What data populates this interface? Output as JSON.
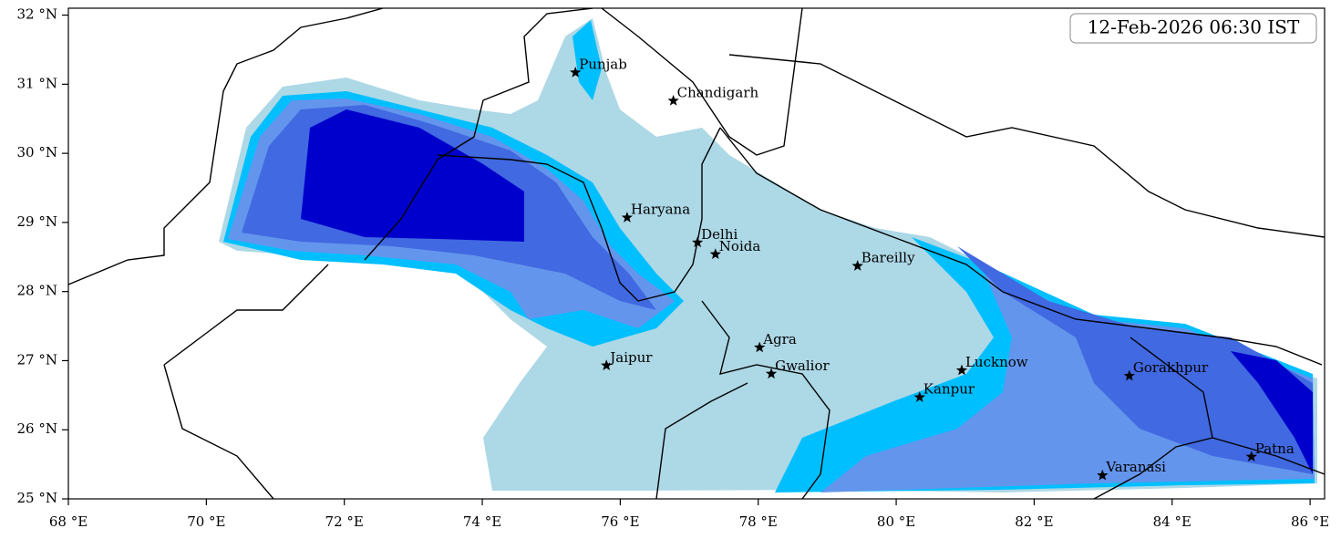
{
  "title": "12-Feb-2026 06:30 IST",
  "map": {
    "xlim": [
      68,
      86.21
    ],
    "ylim": [
      25,
      32.1
    ],
    "xticks": [
      {
        "value": 68,
        "label": "68 °E"
      },
      {
        "value": 70,
        "label": "70 °E"
      },
      {
        "value": 72,
        "label": "72 °E"
      },
      {
        "value": 74,
        "label": "74 °E"
      },
      {
        "value": 76,
        "label": "76 °E"
      },
      {
        "value": 78,
        "label": "78 °E"
      },
      {
        "value": 80,
        "label": "80 °E"
      },
      {
        "value": 82,
        "label": "82 °E"
      },
      {
        "value": 84,
        "label": "84 °E"
      },
      {
        "value": 86,
        "label": "86 °E"
      }
    ],
    "yticks": [
      {
        "value": 25,
        "label": "25 °N"
      },
      {
        "value": 26,
        "label": "26 °N"
      },
      {
        "value": 27,
        "label": "27 °N"
      },
      {
        "value": 28,
        "label": "28 °N"
      },
      {
        "value": 29,
        "label": "29 °N"
      },
      {
        "value": 30,
        "label": "30 °N"
      },
      {
        "value": 31,
        "label": "31 °N"
      },
      {
        "value": 32,
        "label": "32 °N"
      }
    ],
    "cities": [
      {
        "name": "Punjab",
        "lon": 75.35,
        "lat": 31.17
      },
      {
        "name": "Chandigarh",
        "lon": 76.77,
        "lat": 30.76
      },
      {
        "name": "Haryana",
        "lon": 76.1,
        "lat": 29.07
      },
      {
        "name": "Delhi",
        "lon": 77.12,
        "lat": 28.71
      },
      {
        "name": "Noida",
        "lon": 77.38,
        "lat": 28.54
      },
      {
        "name": "Bareilly",
        "lon": 79.44,
        "lat": 28.37
      },
      {
        "name": "Agra",
        "lon": 78.02,
        "lat": 27.19
      },
      {
        "name": "Jaipur",
        "lon": 75.8,
        "lat": 26.93
      },
      {
        "name": "Gwalior",
        "lon": 78.19,
        "lat": 26.81
      },
      {
        "name": "Lucknow",
        "lon": 80.95,
        "lat": 26.86
      },
      {
        "name": "Gorakhpur",
        "lon": 83.38,
        "lat": 26.78
      },
      {
        "name": "Kanpur",
        "lon": 80.34,
        "lat": 26.47
      },
      {
        "name": "Varanasi",
        "lon": 82.99,
        "lat": 25.34
      },
      {
        "name": "Patna",
        "lon": 85.15,
        "lat": 25.61
      }
    ]
  }
}
